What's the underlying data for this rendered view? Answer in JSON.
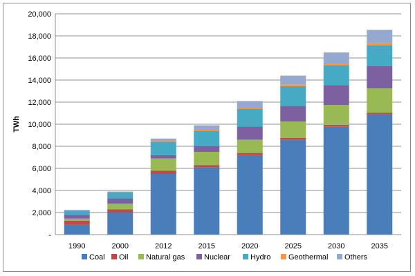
{
  "chart_data": {
    "type": "bar",
    "stacked": true,
    "title": "",
    "xlabel": "",
    "ylabel": "TWh",
    "ylim": [
      0,
      20000
    ],
    "ytick_step": 2000,
    "ytick_labels": [
      "-",
      "2,000",
      "4,000",
      "6,000",
      "8,000",
      "10,000",
      "12,000",
      "14,000",
      "16,000",
      "18,000",
      "20,000"
    ],
    "grid": true,
    "legend_position": "bottom",
    "categories": [
      "1990",
      "2000",
      "2012",
      "2015",
      "2020",
      "2025",
      "2030",
      "2035"
    ],
    "series": [
      {
        "name": "Coal",
        "color": "#4a7ebb",
        "values": [
          900,
          2000,
          5500,
          6100,
          7200,
          8600,
          9800,
          10900
        ]
      },
      {
        "name": "Oil",
        "color": "#be4b48",
        "values": [
          350,
          300,
          300,
          200,
          200,
          150,
          150,
          150
        ]
      },
      {
        "name": "Natural gas",
        "color": "#98b954",
        "values": [
          200,
          500,
          1100,
          1200,
          1200,
          1500,
          1800,
          2200
        ]
      },
      {
        "name": "Nuclear",
        "color": "#7d60a0",
        "values": [
          350,
          500,
          300,
          500,
          1200,
          1400,
          1800,
          2000
        ]
      },
      {
        "name": "Hydro",
        "color": "#46aac5",
        "values": [
          350,
          550,
          1200,
          1400,
          1600,
          1800,
          1800,
          1900
        ]
      },
      {
        "name": "Geothermal",
        "color": "#f79646",
        "values": [
          0,
          0,
          100,
          100,
          100,
          150,
          150,
          200
        ]
      },
      {
        "name": "Others",
        "color": "#93a9cf",
        "values": [
          100,
          50,
          200,
          400,
          600,
          800,
          1000,
          1200
        ]
      }
    ]
  }
}
